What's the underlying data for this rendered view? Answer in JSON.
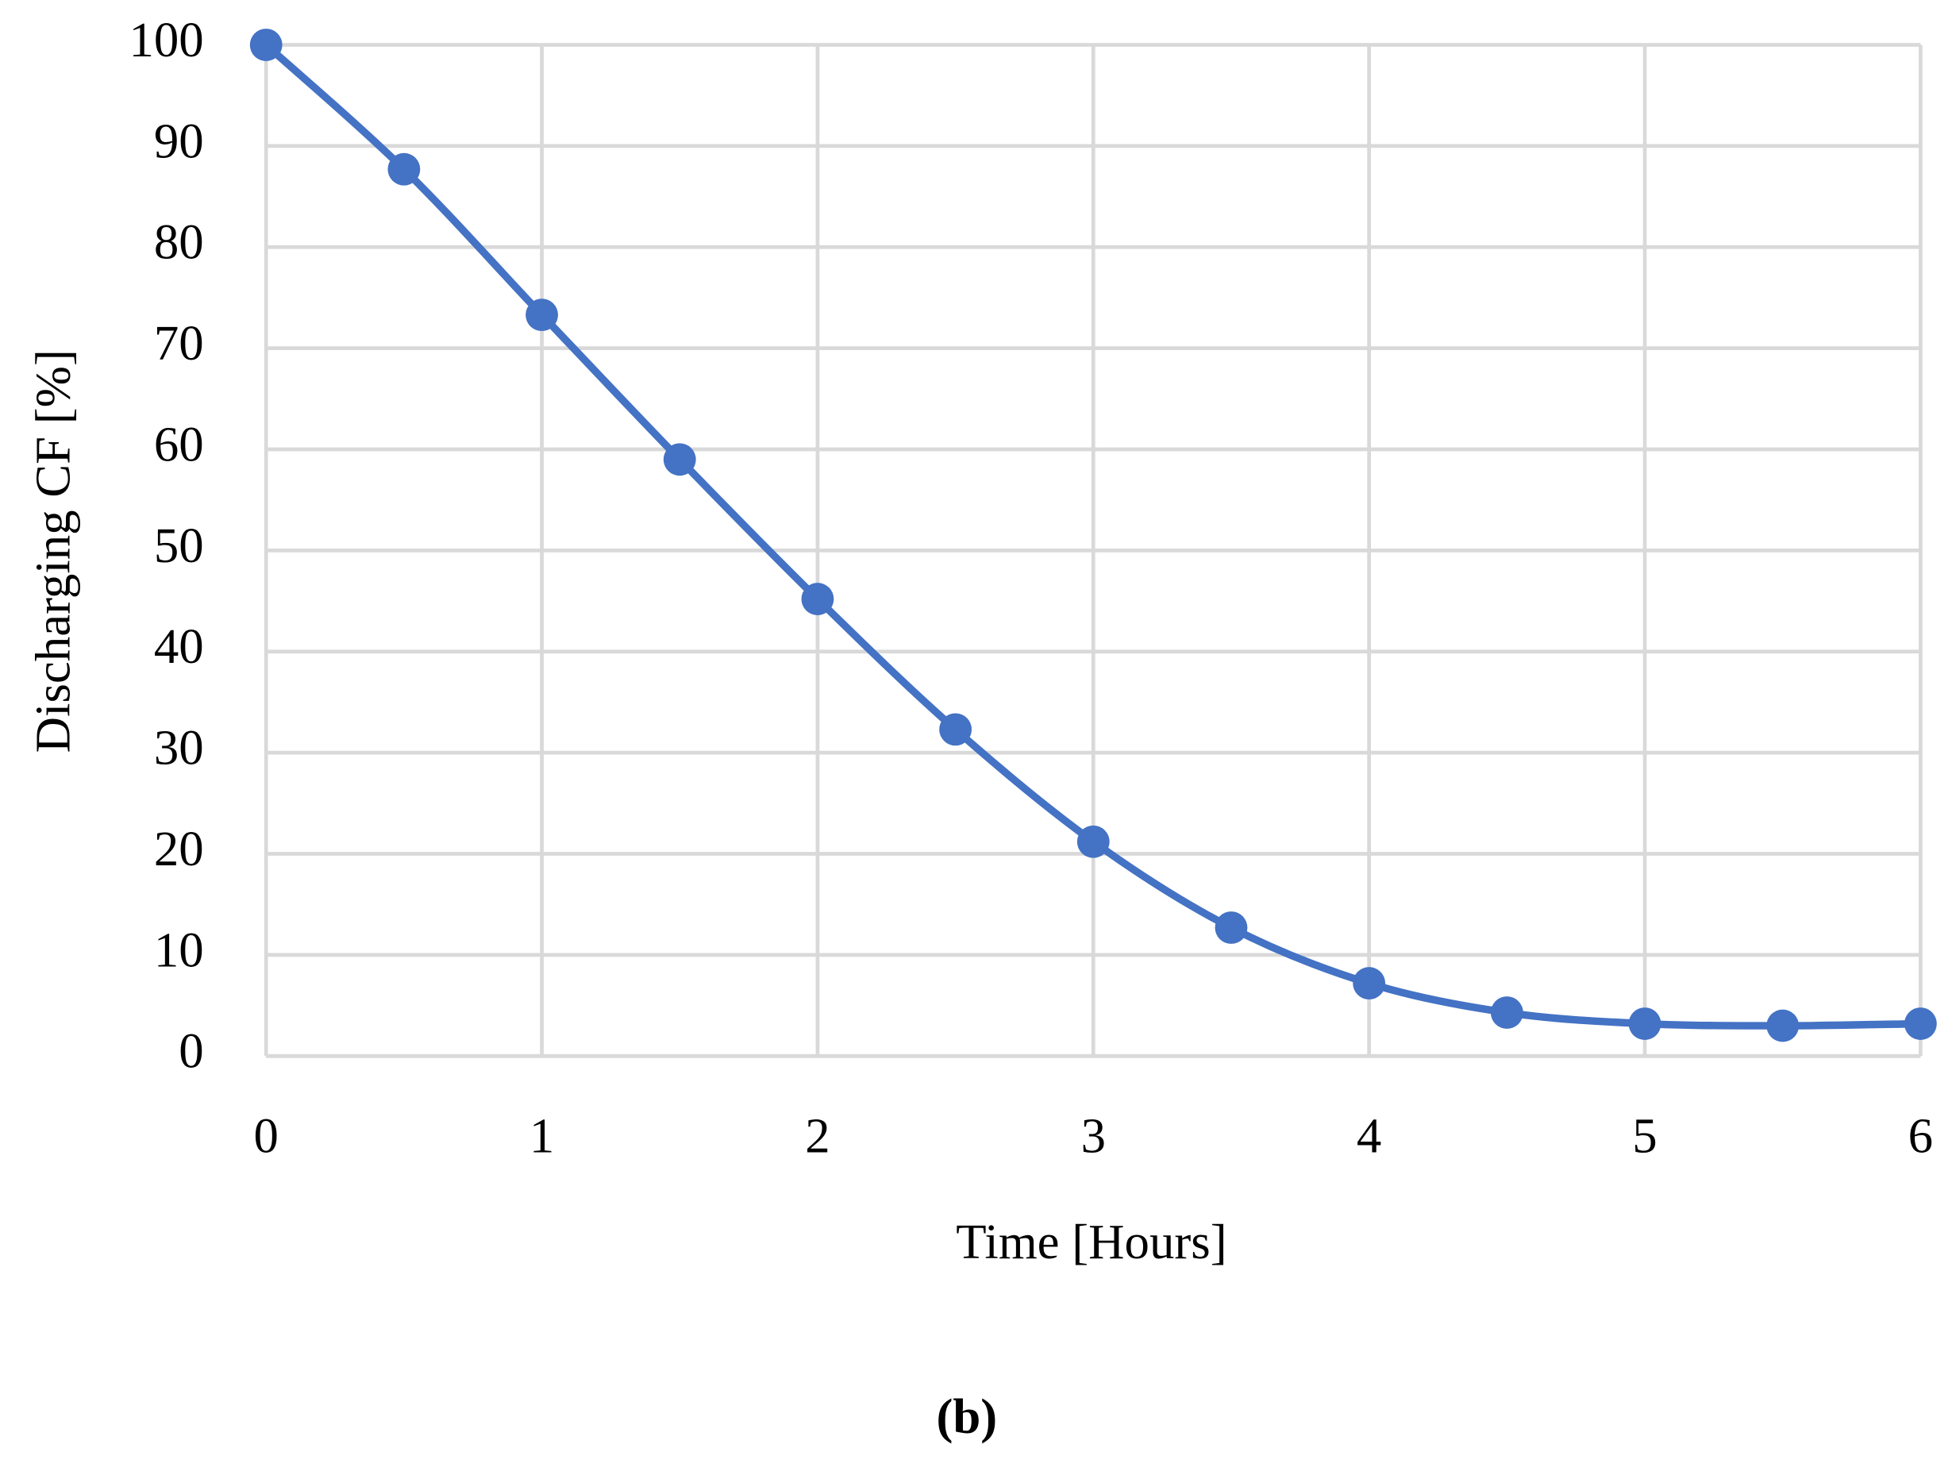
{
  "chart_data": {
    "type": "line",
    "smooth": true,
    "markers": true,
    "color": "#4472c4",
    "x_label": "Time [Hours]",
    "y_label": "Discharging CF [%]",
    "caption": "(b)",
    "x": [
      0,
      0.5,
      1,
      1.5,
      2,
      2.5,
      3,
      3.5,
      4,
      4.5,
      5,
      5.5,
      6
    ],
    "values": [
      100,
      87.7,
      73.3,
      59,
      45.2,
      32.3,
      21.2,
      12.7,
      7.2,
      4.3,
      3.2,
      3.0,
      3.2
    ],
    "xlim": [
      0,
      6
    ],
    "xticks": [
      0,
      1,
      2,
      3,
      4,
      5,
      6
    ],
    "ylim": [
      0,
      100
    ],
    "yticks": [
      0,
      10,
      20,
      30,
      40,
      50,
      60,
      70,
      80,
      90,
      100
    ],
    "grid": true
  }
}
